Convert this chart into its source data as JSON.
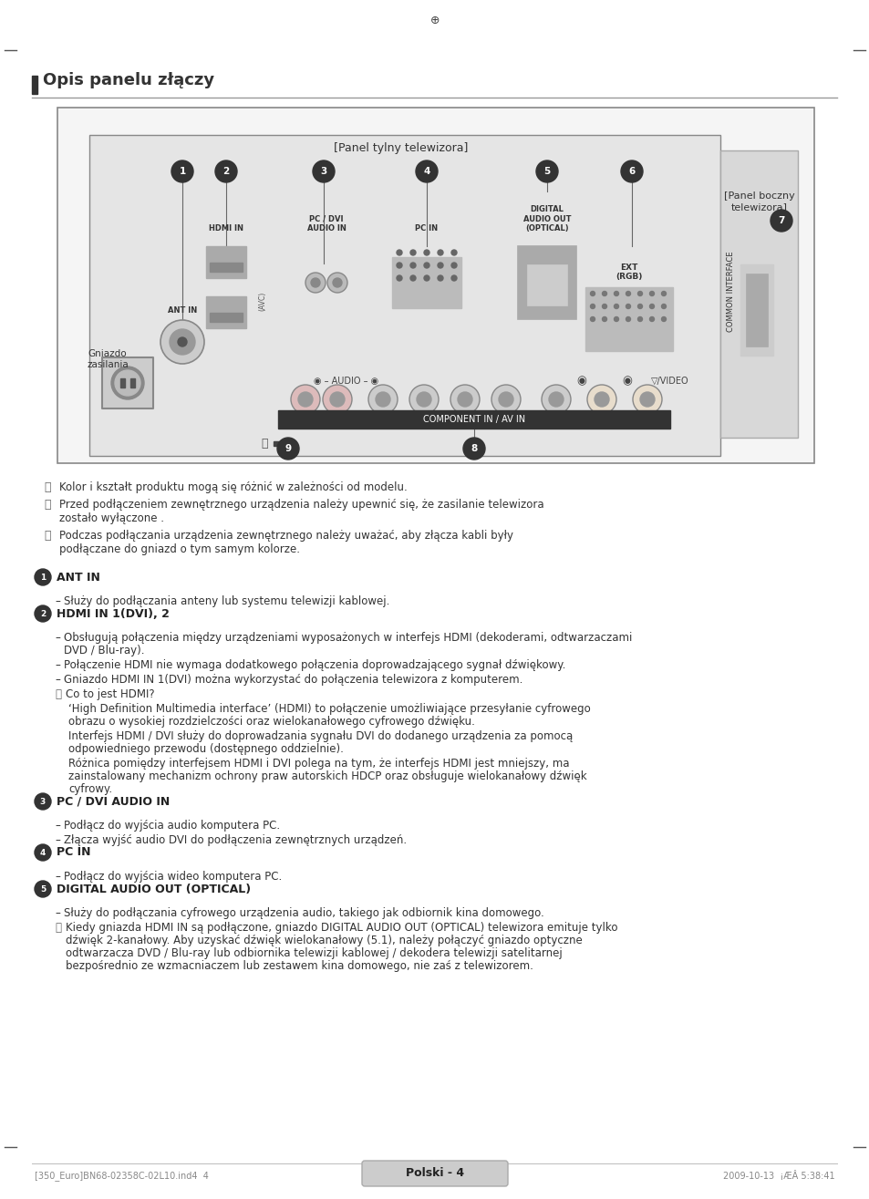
{
  "page_bg": "#ffffff",
  "title": "Opis panelu złączy",
  "title_fontsize": 13,
  "title_color": "#333333",
  "notes": [
    "Kolor i kształt produktu mogą się różnić w zależności od modelu.",
    "Przed podłączeniem zewnętrznego urządzenia należy upewnić się, że zasilanie telewizora zostało wyłączone .",
    "Podczas podłączania urządzenia zewnętrznego należy uważać, aby złącza kabli były podłączane do gniazd o tym samym kolorze."
  ],
  "sections": [
    {
      "num": "1",
      "title": "ANT IN",
      "lines": [
        {
          "type": "bullet",
          "text": "Służy do podłączania anteny lub systemu telewizji kablowej."
        }
      ]
    },
    {
      "num": "2",
      "title": "HDMI IN 1(DVI), 2",
      "lines": [
        {
          "type": "bullet",
          "text": "Obsługują połączenia między urządzeniami wyposażonych w interfejs HDMI (dekoderami, odtwarzaczami DVD / Blu-ray)."
        },
        {
          "type": "bullet",
          "text": "Połączenie HDMI nie wymaga dodatkowego połączenia doprowadzającego sygnał dźwiękowy."
        },
        {
          "type": "bullet",
          "text": "Gniazdo HDMI IN 1(DVI) można wykorzystać do połączenia telewizora z komputerem.",
          "bold_parts": [
            "HDMI IN 1(DVI)"
          ]
        },
        {
          "type": "note",
          "text": "Co to jest HDMI?"
        },
        {
          "type": "indent",
          "text": "‘High Definition Multimedia interface’ (HDMI) to połączenie umożliwiające przesyłanie cyfrowego obrazu o wysokiej rozdzielczości oraz wielokanałowego cyfrowego dźwięku."
        },
        {
          "type": "indent",
          "text": "Interfejs HDMI / DVI służy do doprowadzania sygnału DVI do dodanego urządzenia za pomocą odpowiedniego przewodu (dostępnego oddzielnie)."
        },
        {
          "type": "indent",
          "text": "Różnica pomiędzy interfejsem HDMI i DVI polega na tym, że interfejs HDMI jest mniejszy, ma zainstalowany mechanizm ochrony praw autorskich HDCP oraz obsługuje wielokanałowy dźwięk cyfrowy."
        }
      ]
    },
    {
      "num": "3",
      "title": "PC / DVI AUDIO IN",
      "lines": [
        {
          "type": "bullet",
          "text": "Podłącz do wyjścia audio komputera PC."
        },
        {
          "type": "bullet",
          "text": "Złącza wyjść audio DVI do podłączenia zewnętrznych urządzeń."
        }
      ]
    },
    {
      "num": "4",
      "title": "PC IN",
      "lines": [
        {
          "type": "bullet",
          "text": "Podłącz do wyjścia wideo komputera PC."
        }
      ]
    },
    {
      "num": "5",
      "title": "DIGITAL AUDIO OUT (OPTICAL)",
      "lines": [
        {
          "type": "bullet",
          "text": "Służy do podłączania cyfrowego urządzenia audio, takiego jak odbiornik kina domowego."
        },
        {
          "type": "note",
          "text": "Kiedy gniazda HDMI IN są podłączone, gniazdo DIGITAL AUDIO OUT (OPTICAL) telewizora emituje tylko dźwięk 2-kanałowy. Aby uzyskać dźwięk wielokanałowy (5.1), należy połączyć gniazdo optyczne odtwarzacza DVD / Blu-ray lub odbiornika telewizji kablowej / dekodera telewizji satelitarnej bezpośrednio ze wzmacniaczem lub zestawem kina domowego, nie zaś z telewizorem.",
          "bold_parts": [
            "DIGITAL AUDIO OUT (OPTICAL)"
          ]
        }
      ]
    }
  ],
  "footer_text": "Polski - 4",
  "footer_left": "[350_Euro]BN68-02358C-02L10.ind4  4",
  "footer_right": "2009-10-13  ¡ÆÂ 5:38:41"
}
